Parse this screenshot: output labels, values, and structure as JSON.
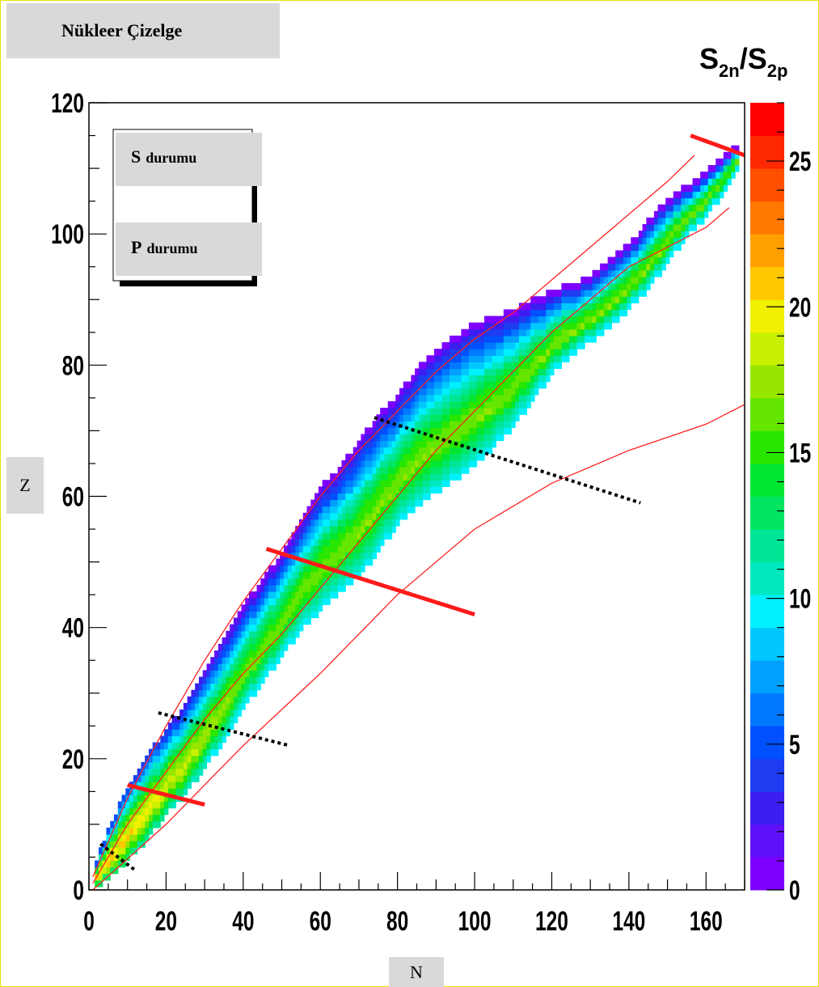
{
  "page": {
    "title": "Nükleer Çizelge"
  },
  "chart_data": {
    "type": "heatmap",
    "title": "",
    "xlabel": "N",
    "ylabel": "Z",
    "zlabel_main": "S",
    "zlabel_sub_n": "2n",
    "zlabel_sub_p": "2p",
    "zlabel_sep": "/",
    "xlim": [
      0,
      170
    ],
    "ylim": [
      0,
      120
    ],
    "zlim": [
      0,
      27
    ],
    "x_ticks": [
      0,
      20,
      40,
      60,
      80,
      100,
      120,
      140,
      160
    ],
    "y_ticks": [
      0,
      20,
      40,
      60,
      80,
      100,
      120
    ],
    "z_ticks": [
      0,
      5,
      10,
      15,
      20,
      25
    ],
    "legend": {
      "position": "top-left",
      "entries": [
        {
          "label_prefix": "S",
          "label_suffix": "durumu"
        },
        {
          "label_prefix": "P",
          "label_suffix": "durumu"
        }
      ]
    },
    "colormap": [
      "#7d00ff",
      "#6010f8",
      "#3c1ef0",
      "#1e3cf0",
      "#0050ff",
      "#0078ff",
      "#00a0ff",
      "#00c8ff",
      "#00f0ff",
      "#00e8c0",
      "#00e696",
      "#00e664",
      "#00e632",
      "#28e600",
      "#64e600",
      "#96e600",
      "#c8f000",
      "#f0f000",
      "#ffc800",
      "#ffa000",
      "#ff7800",
      "#ff5000",
      "#ff2800",
      "#ff0000"
    ],
    "upper_edge": [
      [
        2,
        4
      ],
      [
        5,
        9
      ],
      [
        10,
        15
      ],
      [
        15,
        20
      ],
      [
        20,
        24
      ],
      [
        25,
        28
      ],
      [
        30,
        33
      ],
      [
        35,
        38
      ],
      [
        40,
        43
      ],
      [
        45,
        47
      ],
      [
        50,
        51
      ],
      [
        55,
        56
      ],
      [
        60,
        61
      ],
      [
        65,
        64
      ],
      [
        70,
        68
      ],
      [
        75,
        72
      ],
      [
        80,
        75
      ],
      [
        85,
        79
      ],
      [
        90,
        82
      ],
      [
        95,
        84
      ],
      [
        100,
        86
      ],
      [
        110,
        88
      ],
      [
        120,
        91
      ],
      [
        130,
        93
      ],
      [
        140,
        98
      ],
      [
        150,
        105
      ],
      [
        160,
        109
      ],
      [
        168,
        113
      ]
    ],
    "lower_edge": [
      [
        2,
        1
      ],
      [
        5,
        2
      ],
      [
        10,
        5
      ],
      [
        15,
        8
      ],
      [
        20,
        12
      ],
      [
        25,
        15
      ],
      [
        30,
        19
      ],
      [
        35,
        23
      ],
      [
        40,
        28
      ],
      [
        45,
        32
      ],
      [
        50,
        36
      ],
      [
        55,
        40
      ],
      [
        60,
        43
      ],
      [
        65,
        46
      ],
      [
        70,
        48
      ],
      [
        75,
        52
      ],
      [
        80,
        56
      ],
      [
        85,
        59
      ],
      [
        90,
        61
      ],
      [
        95,
        63
      ],
      [
        100,
        65
      ],
      [
        105,
        68
      ],
      [
        110,
        71
      ],
      [
        115,
        75
      ],
      [
        120,
        79
      ],
      [
        125,
        82
      ],
      [
        130,
        84
      ],
      [
        135,
        86
      ],
      [
        140,
        89
      ],
      [
        145,
        92
      ],
      [
        150,
        96
      ],
      [
        155,
        100
      ],
      [
        160,
        103
      ],
      [
        165,
        107
      ],
      [
        168,
        110
      ]
    ],
    "z_profile": [
      [
        0,
        1
      ],
      [
        0.15,
        5
      ],
      [
        0.35,
        10
      ],
      [
        0.5,
        14
      ],
      [
        0.7,
        17
      ],
      [
        0.85,
        13
      ],
      [
        1.0,
        9
      ]
    ],
    "red_curves": [
      [
        [
          1,
          2
        ],
        [
          10,
          14
        ],
        [
          20,
          25
        ],
        [
          30,
          35
        ],
        [
          40,
          44
        ],
        [
          50,
          52
        ],
        [
          60,
          60
        ],
        [
          70,
          67
        ],
        [
          80,
          73
        ],
        [
          90,
          79
        ],
        [
          100,
          84
        ],
        [
          110,
          88
        ],
        [
          120,
          93
        ],
        [
          130,
          98
        ],
        [
          140,
          103
        ],
        [
          150,
          108
        ],
        [
          157,
          112
        ]
      ],
      [
        [
          1,
          1
        ],
        [
          10,
          10
        ],
        [
          20,
          18
        ],
        [
          30,
          26
        ],
        [
          40,
          33
        ],
        [
          50,
          39
        ],
        [
          60,
          46
        ],
        [
          70,
          53
        ],
        [
          80,
          60
        ],
        [
          90,
          67
        ],
        [
          100,
          73
        ],
        [
          110,
          79
        ],
        [
          120,
          85
        ],
        [
          130,
          90
        ],
        [
          140,
          95
        ],
        [
          150,
          98
        ],
        [
          160,
          101
        ],
        [
          166,
          104
        ]
      ],
      [
        [
          1,
          0
        ],
        [
          20,
          10
        ],
        [
          40,
          22
        ],
        [
          60,
          33
        ],
        [
          80,
          45
        ],
        [
          100,
          55
        ],
        [
          120,
          62
        ],
        [
          140,
          67
        ],
        [
          160,
          71
        ],
        [
          170,
          74
        ]
      ]
    ],
    "thick_red_lines": [
      [
        [
          10,
          16
        ],
        [
          30,
          13
        ]
      ],
      [
        [
          46,
          52
        ],
        [
          100,
          42
        ]
      ],
      [
        [
          156,
          115
        ],
        [
          170,
          112
        ]
      ]
    ],
    "dotted_lines": [
      [
        [
          3,
          7
        ],
        [
          12,
          3
        ]
      ],
      [
        [
          18,
          27
        ],
        [
          52,
          22
        ]
      ],
      [
        [
          74,
          72
        ],
        [
          143,
          59
        ]
      ]
    ]
  }
}
